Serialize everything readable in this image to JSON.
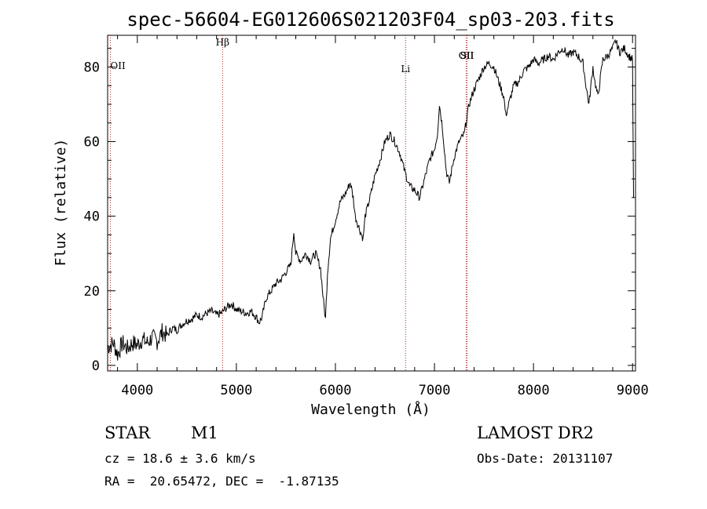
{
  "chart_data": {
    "type": "line",
    "title": "spec-56604-EG012606S021203F04_sp03-203.fits",
    "xlabel": "Wavelength (Å)",
    "ylabel": "Flux (relative)",
    "xlim": [
      3700,
      9030
    ],
    "ylim": [
      -1.5,
      88.5
    ],
    "xticks": [
      4000,
      5000,
      6000,
      7000,
      8000,
      9000
    ],
    "yticks": [
      0,
      20,
      40,
      60,
      80
    ],
    "grid": false,
    "series": [
      {
        "color": "#000000",
        "points": [
          [
            3700,
            5
          ],
          [
            3760,
            6
          ],
          [
            3800,
            3
          ],
          [
            3850,
            6
          ],
          [
            3900,
            4.5
          ],
          [
            3950,
            6
          ],
          [
            4000,
            5.5
          ],
          [
            4050,
            7
          ],
          [
            4100,
            6
          ],
          [
            4150,
            7.5
          ],
          [
            4200,
            6.5
          ],
          [
            4250,
            9
          ],
          [
            4300,
            8
          ],
          [
            4350,
            10
          ],
          [
            4400,
            9.5
          ],
          [
            4450,
            11
          ],
          [
            4500,
            12
          ],
          [
            4550,
            12.5
          ],
          [
            4600,
            13.5
          ],
          [
            4650,
            13
          ],
          [
            4700,
            14
          ],
          [
            4750,
            14.5
          ],
          [
            4800,
            13.5
          ],
          [
            4850,
            14
          ],
          [
            4900,
            15.5
          ],
          [
            4950,
            16.5
          ],
          [
            5000,
            15
          ],
          [
            5050,
            14.5
          ],
          [
            5100,
            14
          ],
          [
            5150,
            14.5
          ],
          [
            5200,
            13
          ],
          [
            5230,
            11.5
          ],
          [
            5260,
            13
          ],
          [
            5300,
            18
          ],
          [
            5350,
            20
          ],
          [
            5400,
            22
          ],
          [
            5450,
            23
          ],
          [
            5500,
            25
          ],
          [
            5550,
            27
          ],
          [
            5580,
            36
          ],
          [
            5600,
            30
          ],
          [
            5650,
            28
          ],
          [
            5700,
            30
          ],
          [
            5750,
            28
          ],
          [
            5800,
            30
          ],
          [
            5850,
            26
          ],
          [
            5880,
            17
          ],
          [
            5900,
            12.5
          ],
          [
            5920,
            25
          ],
          [
            5950,
            34
          ],
          [
            6000,
            39
          ],
          [
            6050,
            44
          ],
          [
            6100,
            46
          ],
          [
            6150,
            49
          ],
          [
            6180,
            45
          ],
          [
            6200,
            40
          ],
          [
            6250,
            36
          ],
          [
            6280,
            34
          ],
          [
            6300,
            40
          ],
          [
            6350,
            45
          ],
          [
            6400,
            51
          ],
          [
            6450,
            55
          ],
          [
            6500,
            60
          ],
          [
            6550,
            62
          ],
          [
            6600,
            60
          ],
          [
            6650,
            57
          ],
          [
            6700,
            52
          ],
          [
            6750,
            48
          ],
          [
            6800,
            47
          ],
          [
            6850,
            45
          ],
          [
            6900,
            50
          ],
          [
            6950,
            55
          ],
          [
            7000,
            58
          ],
          [
            7030,
            62
          ],
          [
            7050,
            70
          ],
          [
            7080,
            64
          ],
          [
            7100,
            58
          ],
          [
            7120,
            52
          ],
          [
            7150,
            49
          ],
          [
            7200,
            56
          ],
          [
            7250,
            60
          ],
          [
            7300,
            62
          ],
          [
            7350,
            70
          ],
          [
            7400,
            74
          ],
          [
            7450,
            77
          ],
          [
            7500,
            80
          ],
          [
            7550,
            81
          ],
          [
            7600,
            80
          ],
          [
            7650,
            76
          ],
          [
            7700,
            72
          ],
          [
            7720,
            67
          ],
          [
            7750,
            70
          ],
          [
            7800,
            75
          ],
          [
            7850,
            76
          ],
          [
            7900,
            79
          ],
          [
            7950,
            80
          ],
          [
            8000,
            82
          ],
          [
            8050,
            81
          ],
          [
            8100,
            82
          ],
          [
            8150,
            83
          ],
          [
            8200,
            82
          ],
          [
            8250,
            84
          ],
          [
            8300,
            85
          ],
          [
            8350,
            83
          ],
          [
            8400,
            84
          ],
          [
            8450,
            83
          ],
          [
            8500,
            81
          ],
          [
            8530,
            75
          ],
          [
            8560,
            70
          ],
          [
            8600,
            80
          ],
          [
            8620,
            76
          ],
          [
            8650,
            72
          ],
          [
            8700,
            82
          ],
          [
            8750,
            83
          ],
          [
            8800,
            85
          ],
          [
            8830,
            87
          ],
          [
            8870,
            84
          ],
          [
            8920,
            85
          ],
          [
            8960,
            83
          ],
          [
            9000,
            82
          ],
          [
            9010,
            45
          ]
        ]
      }
    ],
    "spectral_lines": [
      {
        "label": "OII",
        "x": 3727
      },
      {
        "label": "Hβ",
        "x": 4861
      },
      {
        "label": "Li",
        "x": 6708
      },
      {
        "label": "OII",
        "x": 7320
      },
      {
        "label": "SII",
        "x": 7330
      }
    ]
  },
  "info": {
    "object_type": "STAR",
    "subclass": "M1",
    "survey": "LAMOST DR2",
    "redshift": "cz = 18.6 ± 3.6 km/s",
    "obs_date": "Obs-Date: 20131107",
    "coords": "RA =  20.65472, DEC =  -1.87135"
  }
}
